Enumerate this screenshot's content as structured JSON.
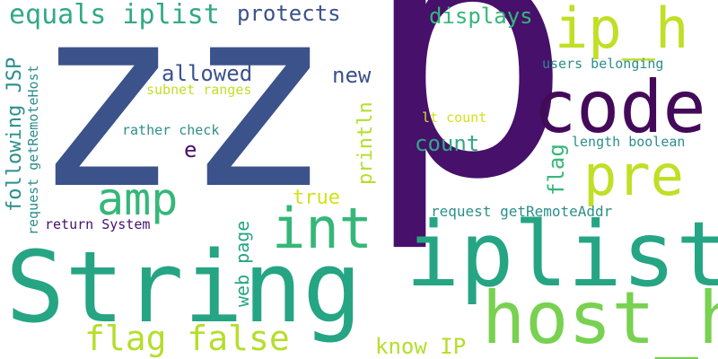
{
  "words": [
    {
      "text": "z",
      "color": "#3b528b"
    },
    {
      "text": "z",
      "color": "#3b528b"
    },
    {
      "text": "p",
      "color": "#46106b"
    },
    {
      "text": "String",
      "color": "#25a583"
    },
    {
      "text": "iplist",
      "color": "#25a583"
    },
    {
      "text": "host_h",
      "color": "#78d151"
    },
    {
      "text": "code",
      "color": "#440a5a"
    },
    {
      "text": "ip_h",
      "color": "#c0df25"
    },
    {
      "text": "pre",
      "color": "#c0df25"
    },
    {
      "text": "int",
      "color": "#35b779"
    },
    {
      "text": "amp",
      "color": "#35b779"
    },
    {
      "text": "flag false",
      "color": "#b5de2b"
    },
    {
      "text": "equals iplist",
      "color": "#31a985"
    },
    {
      "text": "protects",
      "color": "#3b528b"
    },
    {
      "text": "displays",
      "color": "#35b779"
    },
    {
      "text": "allowed",
      "color": "#3b528b"
    },
    {
      "text": "new",
      "color": "#3b528b"
    },
    {
      "text": "count",
      "color": "#31a985"
    },
    {
      "text": "users belonging",
      "color": "#2c8e8c"
    },
    {
      "text": "subnet ranges",
      "color": "#c0df25"
    },
    {
      "text": "rather check",
      "color": "#2c8e8c"
    },
    {
      "text": "lt count",
      "color": "#d2e21b"
    },
    {
      "text": "length boolean",
      "color": "#2c8e8c"
    },
    {
      "text": "e",
      "color": "#46106b"
    },
    {
      "text": "true",
      "color": "#d2e21b"
    },
    {
      "text": "request getRemoteAddr",
      "color": "#2c8e8c"
    },
    {
      "text": "return System",
      "color": "#46106b"
    },
    {
      "text": "know IP",
      "color": "#b5de2b"
    },
    {
      "text": "following JSP",
      "color": "#2c8e8c"
    },
    {
      "text": "request getRemoteHost",
      "color": "#2c8e8c"
    },
    {
      "text": "println",
      "color": "#b5de2b"
    },
    {
      "text": "flag",
      "color": "#35b779"
    },
    {
      "text": "web page",
      "color": "#25a583"
    }
  ]
}
